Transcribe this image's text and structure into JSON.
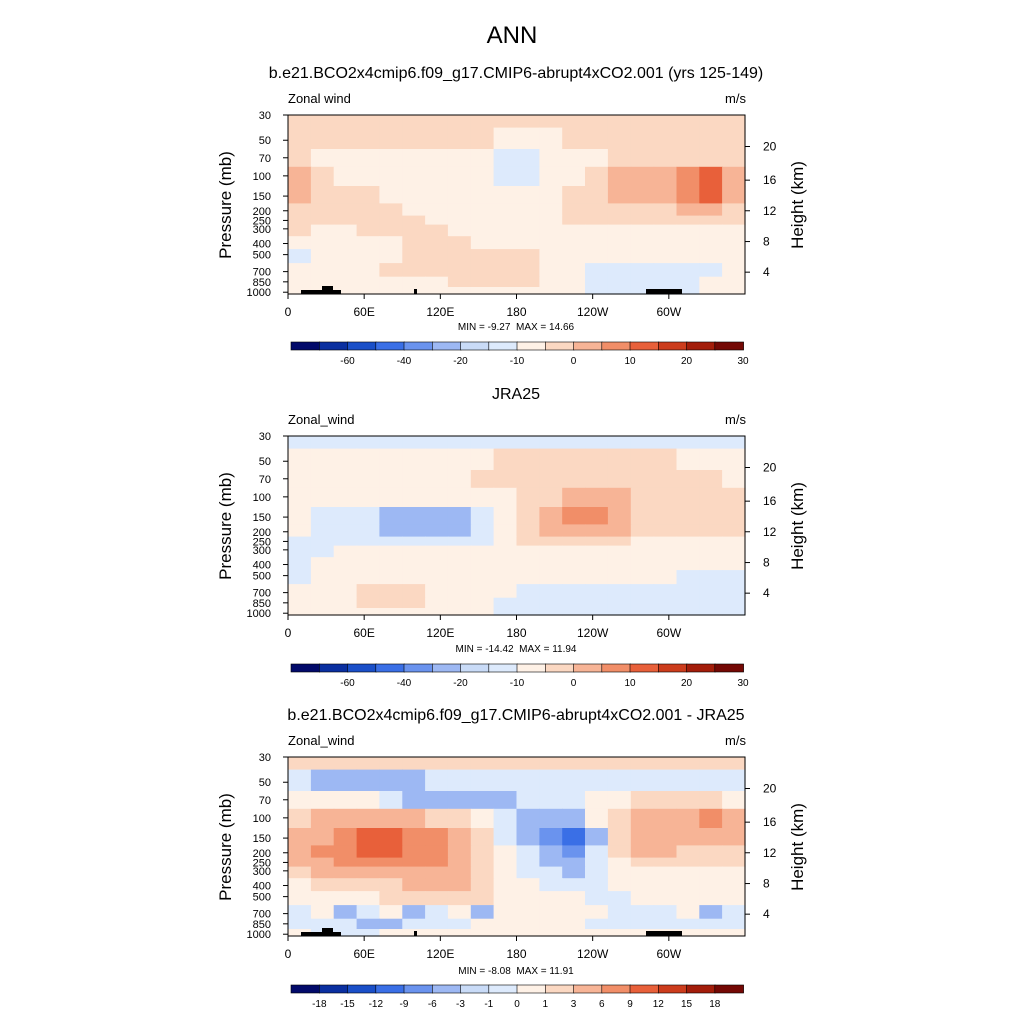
{
  "page_title": "ANN",
  "chart_data": [
    {
      "type": "heatmap",
      "title": "b.e21.BCO2x4cmip6.f09_g17.CMIP6-abrupt4xCO2.001 (yrs 125-149)",
      "variable_label": "Zonal wind",
      "units": "m/s",
      "xlabel": "",
      "ylabel": "Pressure (mb)",
      "ylabel_right": "Height (km)",
      "x_ticks": [
        "0",
        "60E",
        "120E",
        "180",
        "120W",
        "60W"
      ],
      "y_ticks": [
        "30",
        "50",
        "70",
        "100",
        "150",
        "200",
        "250",
        "300",
        "400",
        "500",
        "700",
        "850",
        "1000"
      ],
      "y_ticks_right": [
        "4",
        "8",
        "12",
        "16",
        "20"
      ],
      "stats": "MIN = -9.27  MAX = 14.66",
      "min": -9.27,
      "max": 14.66,
      "colorbar_labels": [
        "-60",
        "-40",
        "-20",
        "-10",
        "0",
        "10",
        "20",
        "30"
      ],
      "colorbar_colors": [
        "#020a6a",
        "#0a2fa0",
        "#1a4fc8",
        "#3a6fe6",
        "#6a93ee",
        "#9db8f3",
        "#c9dbf7",
        "#ddeafc",
        "#fef1e6",
        "#fbd8c2",
        "#f7b496",
        "#f18e68",
        "#e8603a",
        "#cc3c1c",
        "#a31d0a",
        "#740804"
      ],
      "grid": false,
      "field": [
        [
          2,
          2,
          2,
          2,
          2,
          2,
          2,
          2,
          2,
          2,
          2,
          2,
          2,
          2,
          2,
          2,
          2,
          2,
          2,
          2
        ],
        [
          2,
          2,
          2,
          2,
          2,
          2,
          2,
          2,
          2,
          1,
          1,
          1,
          2,
          2,
          2,
          2,
          2,
          2,
          2,
          2
        ],
        [
          2,
          1,
          1,
          1,
          1,
          1,
          1,
          0,
          0,
          -1,
          -1,
          0,
          1,
          1,
          2,
          2,
          2,
          2,
          2,
          2
        ],
        [
          3,
          2,
          1,
          1,
          1,
          1,
          1,
          0,
          0,
          -1,
          -1,
          0,
          1,
          2,
          3,
          3,
          3,
          4,
          5,
          3
        ],
        [
          3,
          2,
          2,
          2,
          1,
          1,
          1,
          1,
          1,
          1,
          1,
          1,
          2,
          2,
          3,
          3,
          3,
          4,
          5,
          3
        ],
        [
          2,
          2,
          2,
          2,
          2,
          1,
          1,
          1,
          1,
          1,
          1,
          1,
          2,
          2,
          2,
          2,
          2,
          3,
          3,
          2
        ],
        [
          2,
          2,
          2,
          2,
          2,
          2,
          1,
          1,
          1,
          1,
          1,
          1,
          2,
          2,
          2,
          2,
          2,
          2,
          2,
          2
        ],
        [
          2,
          1,
          1,
          2,
          2,
          2,
          2,
          1,
          1,
          1,
          1,
          1,
          1,
          1,
          1,
          1,
          1,
          1,
          1,
          1
        ],
        [
          1,
          1,
          1,
          1,
          1,
          2,
          2,
          2,
          1,
          1,
          1,
          1,
          1,
          1,
          1,
          1,
          1,
          1,
          1,
          1
        ],
        [
          -1,
          1,
          1,
          1,
          1,
          2,
          2,
          2,
          2,
          2,
          2,
          1,
          1,
          1,
          0,
          0,
          0,
          1,
          1,
          1
        ],
        [
          1,
          1,
          1,
          1,
          2,
          2,
          2,
          2,
          2,
          2,
          2,
          1,
          1,
          -1,
          -1,
          -1,
          -1,
          -1,
          -1,
          1
        ],
        [
          1,
          1,
          1,
          1,
          1,
          1,
          1,
          2,
          2,
          2,
          2,
          1,
          1,
          -1,
          -1,
          -1,
          -1,
          -1,
          1,
          1
        ],
        [
          1,
          1,
          1,
          1,
          1,
          1,
          1,
          1,
          1,
          1,
          1,
          1,
          1,
          -1,
          -1,
          -1,
          -1,
          -1,
          1,
          1
        ]
      ],
      "topography": true
    },
    {
      "type": "heatmap",
      "title": "JRA25",
      "variable_label": "Zonal_wind",
      "units": "m/s",
      "xlabel": "",
      "ylabel": "Pressure (mb)",
      "ylabel_right": "Height (km)",
      "x_ticks": [
        "0",
        "60E",
        "120E",
        "180",
        "120W",
        "60W"
      ],
      "y_ticks": [
        "30",
        "50",
        "70",
        "100",
        "150",
        "200",
        "250",
        "300",
        "400",
        "500",
        "700",
        "850",
        "1000"
      ],
      "y_ticks_right": [
        "4",
        "8",
        "12",
        "16",
        "20"
      ],
      "stats": "MIN = -14.42  MAX = 11.94",
      "min": -14.42,
      "max": 11.94,
      "colorbar_labels": [
        "-60",
        "-40",
        "-20",
        "-10",
        "0",
        "10",
        "20",
        "30"
      ],
      "colorbar_colors": [
        "#020a6a",
        "#0a2fa0",
        "#1a4fc8",
        "#3a6fe6",
        "#6a93ee",
        "#9db8f3",
        "#c9dbf7",
        "#ddeafc",
        "#fef1e6",
        "#fbd8c2",
        "#f7b496",
        "#f18e68",
        "#e8603a",
        "#cc3c1c",
        "#a31d0a",
        "#740804"
      ],
      "grid": false,
      "field": [
        [
          -1,
          -1,
          -1,
          -1,
          -1,
          -1,
          -1,
          -1,
          -1,
          -1,
          -1,
          -1,
          -1,
          -1,
          -1,
          -1,
          -1,
          -1,
          -1,
          -1
        ],
        [
          1,
          1,
          1,
          1,
          1,
          1,
          1,
          1,
          1,
          2,
          2,
          2,
          2,
          2,
          2,
          2,
          2,
          1,
          1,
          1
        ],
        [
          1,
          1,
          1,
          1,
          1,
          1,
          1,
          1,
          2,
          2,
          2,
          2,
          2,
          2,
          2,
          2,
          2,
          2,
          2,
          1
        ],
        [
          1,
          1,
          1,
          1,
          1,
          1,
          1,
          1,
          1,
          1,
          2,
          2,
          3,
          3,
          3,
          2,
          2,
          2,
          2,
          2
        ],
        [
          1,
          -1,
          -1,
          -1,
          -2,
          -2,
          -2,
          -2,
          -1,
          1,
          2,
          3,
          4,
          4,
          3,
          2,
          2,
          2,
          2,
          2
        ],
        [
          1,
          -1,
          -1,
          -1,
          -2,
          -2,
          -2,
          -2,
          -1,
          1,
          2,
          3,
          3,
          3,
          3,
          2,
          2,
          2,
          2,
          2
        ],
        [
          -1,
          -1,
          -1,
          -1,
          -1,
          -1,
          -1,
          -1,
          -1,
          1,
          2,
          2,
          2,
          2,
          2,
          1,
          1,
          1,
          1,
          1
        ],
        [
          -1,
          -1,
          1,
          1,
          1,
          1,
          1,
          1,
          1,
          1,
          1,
          1,
          1,
          1,
          1,
          1,
          1,
          1,
          1,
          1
        ],
        [
          -1,
          1,
          1,
          1,
          1,
          1,
          1,
          1,
          1,
          1,
          1,
          1,
          1,
          1,
          1,
          1,
          1,
          1,
          1,
          1
        ],
        [
          -1,
          1,
          1,
          1,
          1,
          1,
          1,
          1,
          1,
          1,
          1,
          1,
          1,
          1,
          1,
          1,
          1,
          -1,
          -1,
          -1
        ],
        [
          1,
          1,
          1,
          2,
          2,
          2,
          1,
          1,
          1,
          1,
          -1,
          -1,
          -1,
          -1,
          -1,
          -1,
          -1,
          -1,
          -1,
          -1
        ],
        [
          1,
          1,
          1,
          2,
          2,
          2,
          1,
          1,
          1,
          -1,
          -1,
          -1,
          -1,
          -1,
          -1,
          -1,
          -1,
          -1,
          -1,
          -1
        ],
        [
          1,
          1,
          1,
          1,
          1,
          1,
          1,
          1,
          1,
          -1,
          -1,
          -1,
          -1,
          -1,
          -1,
          -1,
          -1,
          -1,
          -1,
          -1
        ]
      ],
      "topography": false
    },
    {
      "type": "heatmap",
      "title": "b.e21.BCO2x4cmip6.f09_g17.CMIP6-abrupt4xCO2.001 - JRA25",
      "variable_label": "Zonal_wind",
      "units": "m/s",
      "xlabel": "",
      "ylabel": "Pressure (mb)",
      "ylabel_right": "Height (km)",
      "x_ticks": [
        "0",
        "60E",
        "120E",
        "180",
        "120W",
        "60W"
      ],
      "y_ticks": [
        "30",
        "50",
        "70",
        "100",
        "150",
        "200",
        "250",
        "300",
        "400",
        "500",
        "700",
        "850",
        "1000"
      ],
      "y_ticks_right": [
        "4",
        "8",
        "12",
        "16",
        "20"
      ],
      "stats": "MIN = -8.08  MAX = 11.91",
      "min": -8.08,
      "max": 11.91,
      "colorbar_labels": [
        "-18",
        "-15",
        "-12",
        "-9",
        "-6",
        "-3",
        "-1",
        "0",
        "1",
        "3",
        "6",
        "9",
        "12",
        "15",
        "18"
      ],
      "colorbar_colors": [
        "#020a6a",
        "#0a2fa0",
        "#1a4fc8",
        "#3a6fe6",
        "#6a93ee",
        "#9db8f3",
        "#c9dbf7",
        "#ddeafc",
        "#fef1e6",
        "#fbd8c2",
        "#f7b496",
        "#f18e68",
        "#e8603a",
        "#cc3c1c",
        "#a31d0a",
        "#740804"
      ],
      "grid": false,
      "field": [
        [
          2,
          2,
          2,
          2,
          2,
          2,
          2,
          2,
          2,
          2,
          2,
          2,
          2,
          2,
          2,
          2,
          2,
          2,
          2,
          2
        ],
        [
          -1,
          -2,
          -2,
          -2,
          -2,
          -2,
          -1,
          -1,
          -1,
          -1,
          -1,
          -1,
          -1,
          -1,
          -1,
          -1,
          -1,
          -1,
          -1,
          -1
        ],
        [
          1,
          1,
          1,
          1,
          -1,
          -2,
          -2,
          -2,
          -2,
          -2,
          -1,
          -1,
          -1,
          1,
          1,
          2,
          2,
          2,
          2,
          1
        ],
        [
          2,
          3,
          3,
          3,
          3,
          3,
          2,
          2,
          1,
          -1,
          -2,
          -2,
          -2,
          1,
          2,
          3,
          3,
          3,
          4,
          3
        ],
        [
          3,
          3,
          4,
          5,
          5,
          4,
          4,
          3,
          2,
          -1,
          -2,
          -3,
          -4,
          -2,
          2,
          3,
          3,
          3,
          3,
          3
        ],
        [
          3,
          4,
          4,
          5,
          5,
          4,
          4,
          3,
          2,
          1,
          -1,
          -2,
          -3,
          -1,
          2,
          3,
          3,
          2,
          2,
          2
        ],
        [
          3,
          3,
          4,
          4,
          4,
          4,
          4,
          3,
          2,
          1,
          -1,
          -2,
          -2,
          -1,
          1,
          2,
          2,
          2,
          2,
          2
        ],
        [
          2,
          3,
          3,
          3,
          3,
          3,
          3,
          3,
          2,
          1,
          -1,
          -1,
          -2,
          -1,
          1,
          1,
          1,
          1,
          1,
          1
        ],
        [
          1,
          2,
          2,
          2,
          2,
          3,
          3,
          3,
          2,
          1,
          1,
          -1,
          -1,
          -1,
          1,
          1,
          1,
          1,
          1,
          1
        ],
        [
          1,
          1,
          1,
          1,
          2,
          2,
          2,
          2,
          2,
          1,
          1,
          1,
          1,
          -1,
          -1,
          1,
          1,
          1,
          1,
          1
        ],
        [
          -1,
          1,
          -2,
          -1,
          1,
          -2,
          -1,
          1,
          -2,
          1,
          1,
          1,
          1,
          1,
          -1,
          -1,
          -1,
          1,
          -2,
          -1
        ],
        [
          -1,
          -1,
          -1,
          -2,
          -2,
          -1,
          -1,
          -1,
          1,
          1,
          1,
          1,
          1,
          -1,
          -1,
          -1,
          -1,
          -1,
          -1,
          -1
        ],
        [
          1,
          -1,
          -1,
          -1,
          1,
          1,
          1,
          1,
          1,
          1,
          1,
          1,
          1,
          1,
          1,
          1,
          1,
          1,
          1,
          1
        ]
      ],
      "topography": true
    }
  ]
}
